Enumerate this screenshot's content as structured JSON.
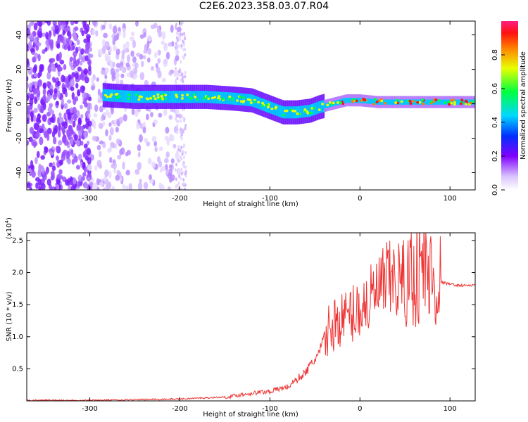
{
  "figure": {
    "title": "C2E6.2023.358.03.07.R04"
  },
  "chart_data": [
    {
      "type": "heatmap",
      "xlabel": "Height of straight line (km)",
      "ylabel": "Frequency (Hz)",
      "xlim": [
        -370,
        128
      ],
      "ylim": [
        -50,
        48
      ],
      "x_ticks": [
        -300,
        -200,
        -100,
        0,
        100
      ],
      "y_ticks": [
        -40,
        -20,
        0,
        20,
        40
      ],
      "colorbar": {
        "label": "Normalized spectral amplitude",
        "range": [
          0,
          1
        ],
        "ticks": [
          "0.0",
          "0.2",
          "0.4",
          "0.6",
          "0.8"
        ]
      },
      "ridge": {
        "x": [
          -285,
          -250,
          -200,
          -170,
          -140,
          -120,
          -100,
          -85,
          -70,
          -55,
          -45,
          -30,
          -15,
          0,
          20,
          60,
          100,
          128
        ],
        "y": [
          5,
          4,
          4,
          4,
          3,
          2,
          -2,
          -5,
          -5,
          -4,
          -2,
          0,
          2,
          2,
          1,
          1,
          1,
          1
        ]
      },
      "grid": false
    },
    {
      "type": "line",
      "xlabel": "Height of straight line (km)",
      "ylabel": "SNR (10 * v/v)",
      "y_multiplier": "(x10",
      "y_multiplier_exp": "4",
      "xlim": [
        -370,
        128
      ],
      "ylim": [
        0,
        2.62
      ],
      "x_ticks": [
        -300,
        -200,
        -100,
        0,
        100
      ],
      "y_ticks": [
        "0.5",
        "1.0",
        "1.5",
        "2.0",
        "2.5"
      ],
      "series": [
        {
          "color": "#ee3333",
          "x": [
            -370,
            -300,
            -250,
            -200,
            -150,
            -120,
            -100,
            -80,
            -60,
            -45,
            -35,
            -25,
            -15,
            0,
            10,
            20,
            30,
            40,
            50,
            60,
            70,
            80,
            90,
            100,
            110,
            128
          ],
          "y": [
            0.01,
            0.01,
            0.02,
            0.03,
            0.06,
            0.12,
            0.15,
            0.22,
            0.45,
            0.75,
            1.1,
            1.25,
            1.3,
            1.45,
            1.55,
            1.7,
            1.85,
            1.9,
            1.85,
            2.0,
            2.1,
            1.9,
            1.85,
            1.82,
            1.8,
            1.8
          ]
        }
      ],
      "grid": false
    }
  ]
}
